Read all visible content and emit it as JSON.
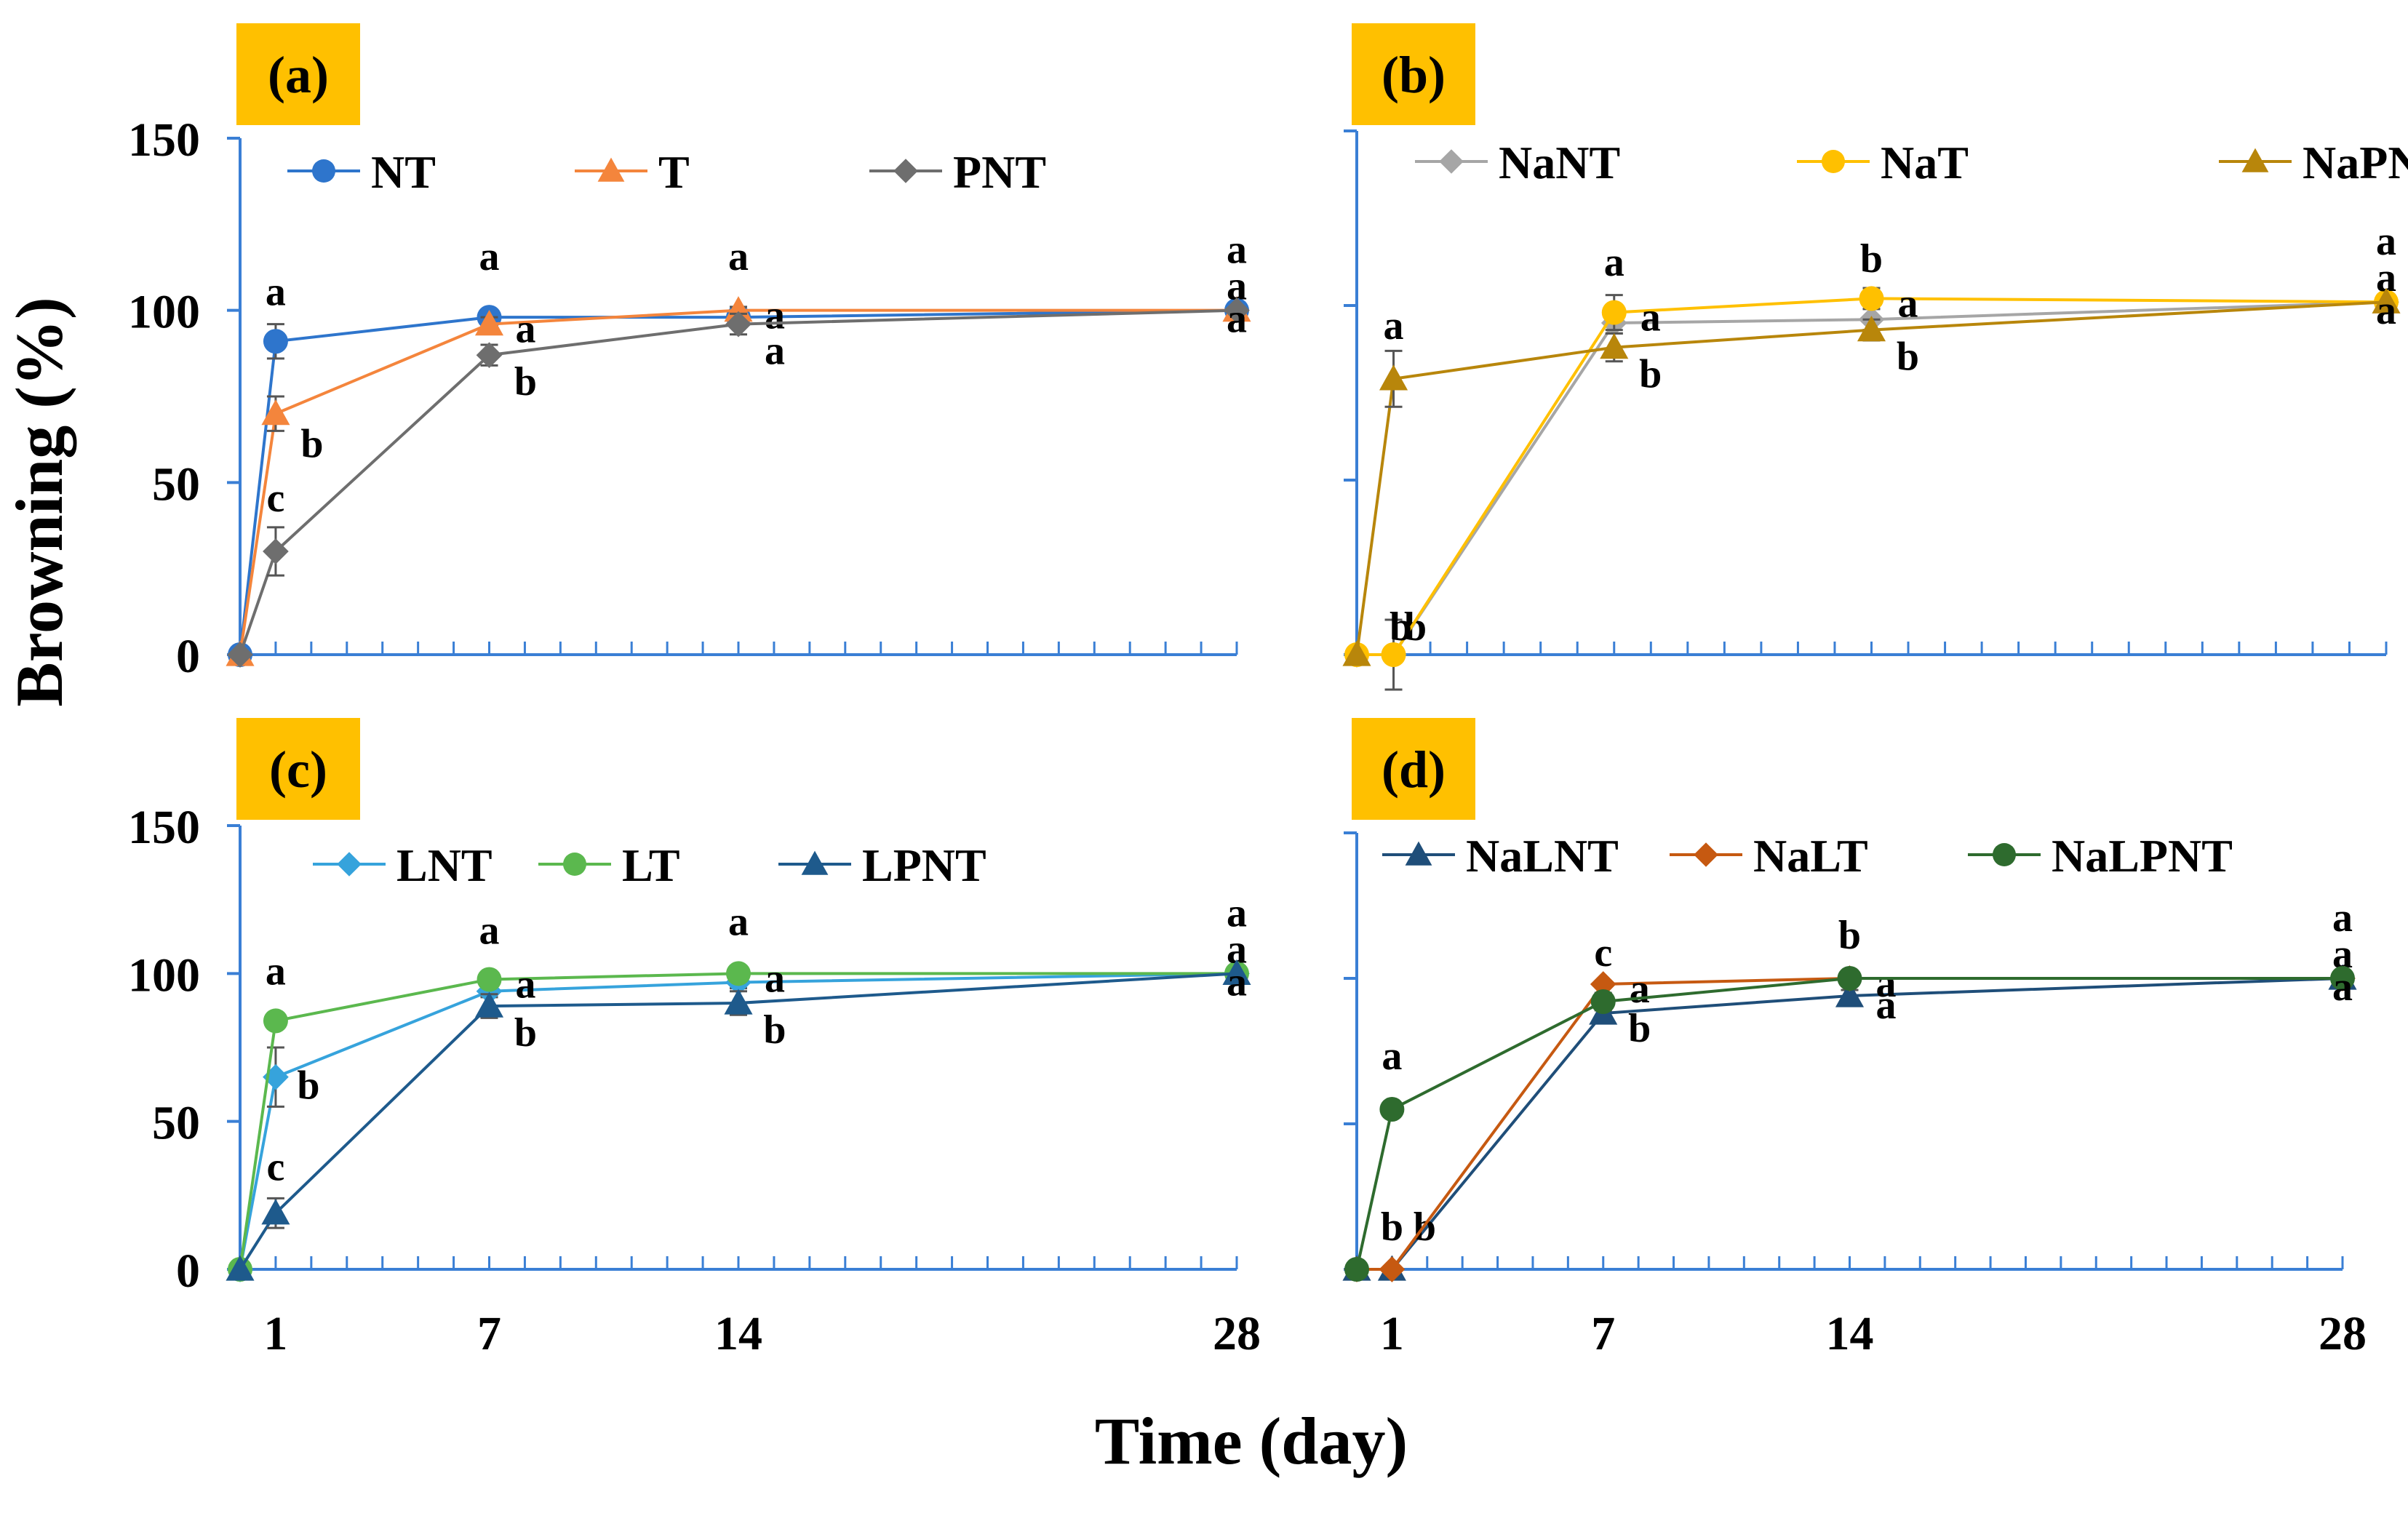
{
  "figure": {
    "ylabel": "Browning (%)",
    "xlabel": "Time (day)",
    "xticks": [
      1,
      7,
      14,
      28
    ],
    "yticks": [
      0,
      50,
      100,
      150
    ]
  },
  "chart_data": [
    {
      "type": "line",
      "panel": "(a)",
      "x": [
        0,
        1,
        7,
        14,
        28
      ],
      "xlim": [
        0,
        28
      ],
      "ylim": [
        0,
        150
      ],
      "series": [
        {
          "name": "NT",
          "color": "#2E75CC",
          "marker": "circle",
          "values": [
            0,
            91,
            98,
            98,
            100
          ],
          "errors": [
            0,
            5,
            1,
            2,
            0
          ],
          "letters": [
            "",
            "a",
            "a",
            "a",
            "a"
          ]
        },
        {
          "name": "T",
          "color": "#F4853C",
          "marker": "triangle",
          "values": [
            0,
            70,
            96,
            100,
            100
          ],
          "errors": [
            0,
            5,
            2,
            1,
            0
          ],
          "letters": [
            "",
            "b",
            "a",
            "a",
            "a"
          ]
        },
        {
          "name": "PNT",
          "color": "#6E6E6E",
          "marker": "diamond",
          "values": [
            0,
            30,
            87,
            96,
            100
          ],
          "errors": [
            0,
            7,
            3,
            3,
            0
          ],
          "letters": [
            "",
            "c",
            "b",
            "a",
            "a"
          ]
        }
      ]
    },
    {
      "type": "line",
      "panel": "(b)",
      "x": [
        0,
        1,
        7,
        14,
        28
      ],
      "xlim": [
        0,
        28
      ],
      "ylim": [
        0,
        150
      ],
      "series": [
        {
          "name": "NaNT",
          "color": "#A6A6A6",
          "marker": "diamond",
          "values": [
            0,
            0,
            95,
            96,
            101
          ],
          "errors": [
            0,
            0,
            3,
            3,
            0
          ],
          "letters": [
            "",
            "b",
            "a",
            "b",
            "a"
          ]
        },
        {
          "name": "NaT",
          "color": "#FFC000",
          "marker": "circle",
          "values": [
            0,
            0,
            98,
            102,
            101
          ],
          "errors": [
            0,
            10,
            5,
            3,
            0
          ],
          "letters": [
            "",
            "b",
            "a",
            "a",
            "a"
          ]
        },
        {
          "name": "NaPNT",
          "color": "#B8860B",
          "marker": "triangle",
          "values": [
            0,
            79,
            88,
            93,
            101
          ],
          "errors": [
            0,
            8,
            4,
            3,
            0
          ],
          "letters": [
            "",
            "a",
            "b",
            "b",
            "a"
          ]
        }
      ]
    },
    {
      "type": "line",
      "panel": "(c)",
      "x": [
        0,
        1,
        7,
        14,
        28
      ],
      "xlim": [
        0,
        28
      ],
      "ylim": [
        0,
        150
      ],
      "series": [
        {
          "name": "LNT",
          "color": "#36A3DC",
          "marker": "diamond",
          "values": [
            0,
            65,
            94,
            97,
            100
          ],
          "errors": [
            0,
            10,
            2,
            2,
            0
          ],
          "letters": [
            "",
            "b",
            "a",
            "a",
            "a"
          ]
        },
        {
          "name": "LT",
          "color": "#5BB84E",
          "marker": "circle",
          "values": [
            0,
            84,
            98,
            100,
            100
          ],
          "errors": [
            0,
            2,
            1,
            1,
            0
          ],
          "letters": [
            "",
            "a",
            "a",
            "a",
            "a"
          ]
        },
        {
          "name": "LPNT",
          "color": "#1E5A8C",
          "marker": "triangle",
          "values": [
            0,
            19,
            89,
            90,
            100
          ],
          "errors": [
            0,
            5,
            4,
            4,
            0
          ],
          "letters": [
            "",
            "c",
            "b",
            "b",
            "a"
          ]
        }
      ]
    },
    {
      "type": "line",
      "panel": "(d)",
      "x": [
        0,
        1,
        7,
        14,
        28
      ],
      "xlim": [
        0,
        28
      ],
      "ylim": [
        0,
        150
      ],
      "series": [
        {
          "name": "NaLNT",
          "color": "#1F4E79",
          "marker": "triangle",
          "values": [
            0,
            0,
            88,
            94,
            100
          ],
          "errors": [
            0,
            0,
            3,
            2,
            0
          ],
          "letters": [
            "",
            "b",
            "c",
            "b",
            "a"
          ]
        },
        {
          "name": "NaLT",
          "color": "#C65911",
          "marker": "diamond",
          "values": [
            0,
            0,
            98,
            100,
            100
          ],
          "errors": [
            0,
            0,
            1,
            1,
            0
          ],
          "letters": [
            "",
            "b",
            "a",
            "a",
            "a"
          ]
        },
        {
          "name": "NaLPNT",
          "color": "#2E6B2E",
          "marker": "circle",
          "values": [
            0,
            55,
            92,
            100,
            100
          ],
          "errors": [
            0,
            2,
            3,
            2,
            0
          ],
          "letters": [
            "",
            "a",
            "b",
            "a",
            "a"
          ]
        }
      ]
    }
  ]
}
